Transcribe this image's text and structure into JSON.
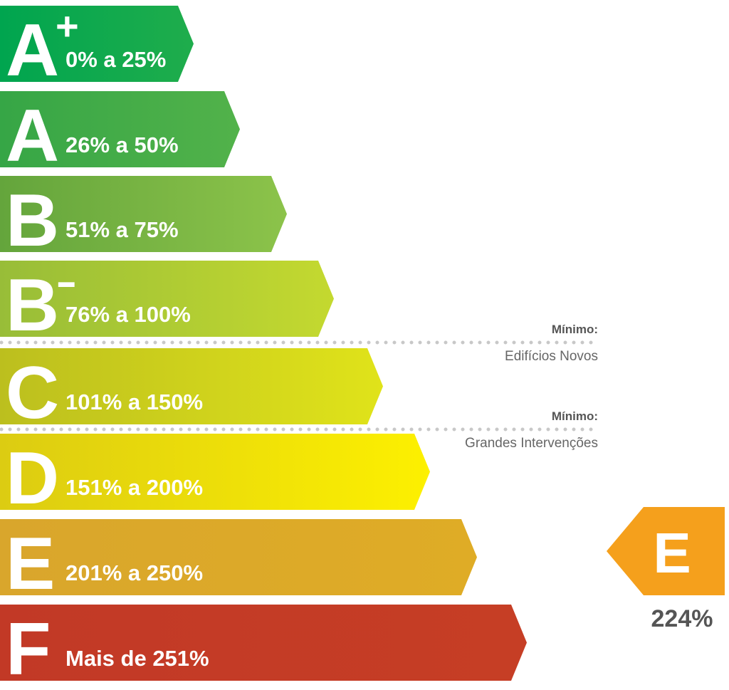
{
  "classes": [
    {
      "letter": "A",
      "sup": "+",
      "range": "0% a 25%"
    },
    {
      "letter": "A",
      "range": "26% a 50%"
    },
    {
      "letter": "B",
      "range": "51% a 75%"
    },
    {
      "letter": "B",
      "sup": "-",
      "range": "76% a 100%"
    },
    {
      "letter": "C",
      "range": "101% a 150%"
    },
    {
      "letter": "D",
      "range": "151% a 200%"
    },
    {
      "letter": "E",
      "range": "201% a 250%"
    },
    {
      "letter": "F",
      "range": "Mais de 251%"
    }
  ],
  "thresholds": [
    {
      "title": "Mínimo:",
      "label": "Edifícios Novos"
    },
    {
      "title": "Mínimo:",
      "label": "Grandes Intervenções"
    }
  ],
  "result": {
    "letter": "E",
    "value": "224%"
  }
}
